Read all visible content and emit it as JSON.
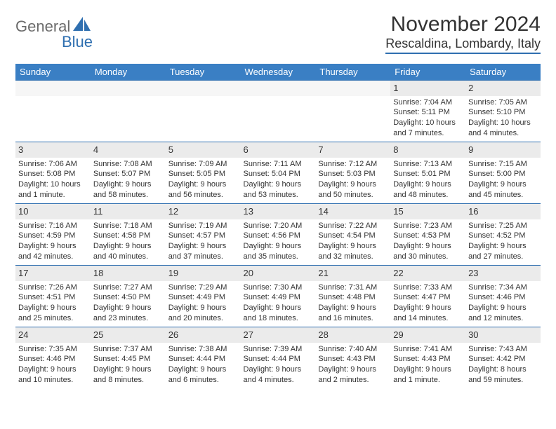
{
  "brand": {
    "textA": "General",
    "textB": "Blue"
  },
  "title": "November 2024",
  "location": "Rescaldina, Lombardy, Italy",
  "colors": {
    "headerBlue": "#3a7fc4",
    "ruleBlue": "#2f6fb0",
    "dayNumBg": "#ebebeb",
    "textGray": "#6b6b6b",
    "brandBlue": "#2f6fb0"
  },
  "weekdays": [
    "Sunday",
    "Monday",
    "Tuesday",
    "Wednesday",
    "Thursday",
    "Friday",
    "Saturday"
  ],
  "weeks": [
    [
      {
        "n": "",
        "info": ""
      },
      {
        "n": "",
        "info": ""
      },
      {
        "n": "",
        "info": ""
      },
      {
        "n": "",
        "info": ""
      },
      {
        "n": "",
        "info": ""
      },
      {
        "n": "1",
        "info": "Sunrise: 7:04 AM\nSunset: 5:11 PM\nDaylight: 10 hours and 7 minutes."
      },
      {
        "n": "2",
        "info": "Sunrise: 7:05 AM\nSunset: 5:10 PM\nDaylight: 10 hours and 4 minutes."
      }
    ],
    [
      {
        "n": "3",
        "info": "Sunrise: 7:06 AM\nSunset: 5:08 PM\nDaylight: 10 hours and 1 minute."
      },
      {
        "n": "4",
        "info": "Sunrise: 7:08 AM\nSunset: 5:07 PM\nDaylight: 9 hours and 58 minutes."
      },
      {
        "n": "5",
        "info": "Sunrise: 7:09 AM\nSunset: 5:05 PM\nDaylight: 9 hours and 56 minutes."
      },
      {
        "n": "6",
        "info": "Sunrise: 7:11 AM\nSunset: 5:04 PM\nDaylight: 9 hours and 53 minutes."
      },
      {
        "n": "7",
        "info": "Sunrise: 7:12 AM\nSunset: 5:03 PM\nDaylight: 9 hours and 50 minutes."
      },
      {
        "n": "8",
        "info": "Sunrise: 7:13 AM\nSunset: 5:01 PM\nDaylight: 9 hours and 48 minutes."
      },
      {
        "n": "9",
        "info": "Sunrise: 7:15 AM\nSunset: 5:00 PM\nDaylight: 9 hours and 45 minutes."
      }
    ],
    [
      {
        "n": "10",
        "info": "Sunrise: 7:16 AM\nSunset: 4:59 PM\nDaylight: 9 hours and 42 minutes."
      },
      {
        "n": "11",
        "info": "Sunrise: 7:18 AM\nSunset: 4:58 PM\nDaylight: 9 hours and 40 minutes."
      },
      {
        "n": "12",
        "info": "Sunrise: 7:19 AM\nSunset: 4:57 PM\nDaylight: 9 hours and 37 minutes."
      },
      {
        "n": "13",
        "info": "Sunrise: 7:20 AM\nSunset: 4:56 PM\nDaylight: 9 hours and 35 minutes."
      },
      {
        "n": "14",
        "info": "Sunrise: 7:22 AM\nSunset: 4:54 PM\nDaylight: 9 hours and 32 minutes."
      },
      {
        "n": "15",
        "info": "Sunrise: 7:23 AM\nSunset: 4:53 PM\nDaylight: 9 hours and 30 minutes."
      },
      {
        "n": "16",
        "info": "Sunrise: 7:25 AM\nSunset: 4:52 PM\nDaylight: 9 hours and 27 minutes."
      }
    ],
    [
      {
        "n": "17",
        "info": "Sunrise: 7:26 AM\nSunset: 4:51 PM\nDaylight: 9 hours and 25 minutes."
      },
      {
        "n": "18",
        "info": "Sunrise: 7:27 AM\nSunset: 4:50 PM\nDaylight: 9 hours and 23 minutes."
      },
      {
        "n": "19",
        "info": "Sunrise: 7:29 AM\nSunset: 4:49 PM\nDaylight: 9 hours and 20 minutes."
      },
      {
        "n": "20",
        "info": "Sunrise: 7:30 AM\nSunset: 4:49 PM\nDaylight: 9 hours and 18 minutes."
      },
      {
        "n": "21",
        "info": "Sunrise: 7:31 AM\nSunset: 4:48 PM\nDaylight: 9 hours and 16 minutes."
      },
      {
        "n": "22",
        "info": "Sunrise: 7:33 AM\nSunset: 4:47 PM\nDaylight: 9 hours and 14 minutes."
      },
      {
        "n": "23",
        "info": "Sunrise: 7:34 AM\nSunset: 4:46 PM\nDaylight: 9 hours and 12 minutes."
      }
    ],
    [
      {
        "n": "24",
        "info": "Sunrise: 7:35 AM\nSunset: 4:46 PM\nDaylight: 9 hours and 10 minutes."
      },
      {
        "n": "25",
        "info": "Sunrise: 7:37 AM\nSunset: 4:45 PM\nDaylight: 9 hours and 8 minutes."
      },
      {
        "n": "26",
        "info": "Sunrise: 7:38 AM\nSunset: 4:44 PM\nDaylight: 9 hours and 6 minutes."
      },
      {
        "n": "27",
        "info": "Sunrise: 7:39 AM\nSunset: 4:44 PM\nDaylight: 9 hours and 4 minutes."
      },
      {
        "n": "28",
        "info": "Sunrise: 7:40 AM\nSunset: 4:43 PM\nDaylight: 9 hours and 2 minutes."
      },
      {
        "n": "29",
        "info": "Sunrise: 7:41 AM\nSunset: 4:43 PM\nDaylight: 9 hours and 1 minute."
      },
      {
        "n": "30",
        "info": "Sunrise: 7:43 AM\nSunset: 4:42 PM\nDaylight: 8 hours and 59 minutes."
      }
    ]
  ]
}
